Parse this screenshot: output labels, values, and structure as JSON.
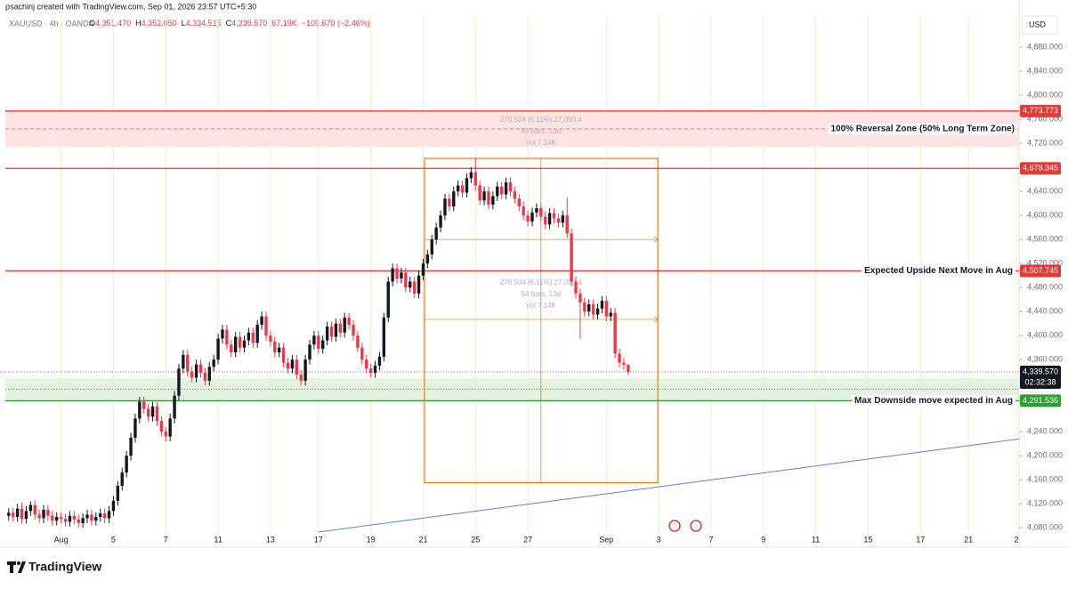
{
  "header": {
    "author": "psachinj created with TradingView.com, Sep 01, 2026 23:57 UTC+5:30",
    "symbol": "XAUUSD · 4h · OANDA",
    "legend": [
      {
        "key": "O",
        "value": "4,351.470"
      },
      {
        "key": "H",
        "value": "4,352.050"
      },
      {
        "key": "L",
        "value": "4,334.515"
      },
      {
        "key": "C",
        "value": "4,339.570"
      }
    ],
    "volume": "67.19K",
    "change": "−109.670 (−2.46%)"
  },
  "currency": "USD",
  "logo": "TradingView",
  "chart_data": {
    "type": "candlestick",
    "up_color": "#131722",
    "down_color": "#f23645",
    "xlim": [
      -2,
      231.6
    ],
    "ylim": [
      4070,
      4932
    ],
    "xticks": [
      {
        "value": 12,
        "label": "Aug"
      },
      {
        "value": 24,
        "label": "5"
      },
      {
        "value": 36,
        "label": "7"
      },
      {
        "value": 48,
        "label": "11"
      },
      {
        "value": 60,
        "label": "13"
      },
      {
        "value": 71,
        "label": "17"
      },
      {
        "value": 83,
        "label": "19"
      },
      {
        "value": 95,
        "label": "21"
      },
      {
        "value": 107,
        "label": "25"
      },
      {
        "value": 119,
        "label": "27"
      },
      {
        "value": 137,
        "label": "Sep"
      },
      {
        "value": 149,
        "label": "3"
      },
      {
        "value": 161,
        "label": "7"
      },
      {
        "value": 173,
        "label": "9"
      },
      {
        "value": 185,
        "label": "11"
      },
      {
        "value": 197,
        "label": "15"
      },
      {
        "value": 209,
        "label": "17"
      },
      {
        "value": 220,
        "label": "21"
      },
      {
        "value": 231,
        "label": "2"
      }
    ],
    "yticks": [
      {
        "value": 4880,
        "label": "4,880.000"
      },
      {
        "value": 4840,
        "label": "4,840.000"
      },
      {
        "value": 4800,
        "label": "4,800.000"
      },
      {
        "value": 4760,
        "label": "4,760.000"
      },
      {
        "value": 4720,
        "label": "4,720.000"
      },
      {
        "value": 4640,
        "label": "4,640.000"
      },
      {
        "value": 4600,
        "label": "4,600.000"
      },
      {
        "value": 4560,
        "label": "4,560.000"
      },
      {
        "value": 4520,
        "label": "4,520.000"
      },
      {
        "value": 4480,
        "label": "4,480.000"
      },
      {
        "value": 4440,
        "label": "4,440.000"
      },
      {
        "value": 4400,
        "label": "4,400.000"
      },
      {
        "value": 4360,
        "label": "4,360.000"
      },
      {
        "value": 4240,
        "label": "4,240.000"
      },
      {
        "value": 4200,
        "label": "4,200.000"
      },
      {
        "value": 4160,
        "label": "4,160.000"
      },
      {
        "value": 4120,
        "label": "4,120.000"
      },
      {
        "value": 4080,
        "label": "4,080.000"
      }
    ],
    "open": [
      4100,
      4105,
      4098,
      4112,
      4095,
      4108,
      4118,
      4102,
      4096,
      4110,
      4100,
      4092,
      4098,
      4095,
      4090,
      4100,
      4094,
      4088,
      4096,
      4102,
      4092,
      4098,
      4104,
      4096,
      4108,
      4125,
      4150,
      4172,
      4200,
      4230,
      4262,
      4290,
      4278,
      4265,
      4282,
      4258,
      4240,
      4232,
      4262,
      4300,
      4345,
      4368,
      4340,
      4330,
      4352,
      4338,
      4325,
      4348,
      4360,
      4395,
      4410,
      4385,
      4372,
      4398,
      4380,
      4392,
      4405,
      4388,
      4418,
      4432,
      4400,
      4390,
      4372,
      4380,
      4355,
      4345,
      4360,
      4335,
      4325,
      4360,
      4385,
      4400,
      4378,
      4392,
      4415,
      4398,
      4420,
      4405,
      4430,
      4418,
      4400,
      4380,
      4360,
      4345,
      4338,
      4350,
      4365,
      4430,
      4490,
      4512,
      4495,
      4505,
      4480,
      4490,
      4470,
      4500,
      4520,
      4535,
      4560,
      4580,
      4600,
      4628,
      4615,
      4640,
      4650,
      4638,
      4662,
      4672,
      4650,
      4625,
      4640,
      4618,
      4632,
      4648,
      4635,
      4655,
      4640,
      4628,
      4615,
      4600,
      4590,
      4605,
      4612,
      4598,
      4585,
      4604,
      4595,
      4588,
      4600,
      4570,
      4490,
      4470,
      4455,
      4440,
      4452,
      4435,
      4445,
      4458,
      4432,
      4438,
      4370,
      4355,
      4351.47
    ],
    "high": [
      4113,
      4113,
      4120,
      4122,
      4116,
      4124,
      4126,
      4110,
      4118,
      4118,
      4108,
      4106,
      4106,
      4103,
      4108,
      4108,
      4102,
      4104,
      4110,
      4110,
      4106,
      4112,
      4112,
      4116,
      4133,
      4158,
      4180,
      4208,
      4238,
      4270,
      4298,
      4298,
      4286,
      4290,
      4290,
      4266,
      4248,
      4270,
      4308,
      4353,
      4376,
      4376,
      4348,
      4360,
      4360,
      4346,
      4356,
      4368,
      4403,
      4418,
      4418,
      4393,
      4406,
      4406,
      4400,
      4413,
      4413,
      4426,
      4440,
      4440,
      4408,
      4398,
      4388,
      4388,
      4363,
      4368,
      4368,
      4343,
      4368,
      4393,
      4408,
      4408,
      4400,
      4423,
      4423,
      4428,
      4428,
      4438,
      4438,
      4426,
      4408,
      4388,
      4368,
      4353,
      4358,
      4373,
      4438,
      4498,
      4520,
      4520,
      4513,
      4513,
      4498,
      4498,
      4508,
      4528,
      4543,
      4568,
      4588,
      4608,
      4636,
      4636,
      4648,
      4658,
      4658,
      4670,
      4680,
      4695,
      4658,
      4648,
      4648,
      4640,
      4656,
      4656,
      4663,
      4663,
      4648,
      4636,
      4623,
      4608,
      4613,
      4620,
      4620,
      4606,
      4612,
      4612,
      4603,
      4608,
      4630,
      4578,
      4498,
      4478,
      4463,
      4460,
      4460,
      4453,
      4466,
      4466,
      4446,
      4446,
      4378,
      4363,
      4352.05
    ],
    "low": [
      4092,
      4090,
      4090,
      4087,
      4087,
      4100,
      4094,
      4088,
      4088,
      4092,
      4084,
      4084,
      4087,
      4082,
      4082,
      4086,
      4080,
      4080,
      4088,
      4084,
      4084,
      4090,
      4088,
      4088,
      4100,
      4117,
      4142,
      4164,
      4192,
      4222,
      4254,
      4270,
      4257,
      4257,
      4250,
      4232,
      4224,
      4224,
      4254,
      4292,
      4337,
      4332,
      4322,
      4322,
      4330,
      4317,
      4317,
      4340,
      4352,
      4387,
      4377,
      4364,
      4364,
      4372,
      4372,
      4384,
      4380,
      4380,
      4410,
      4392,
      4382,
      4364,
      4364,
      4347,
      4337,
      4337,
      4327,
      4317,
      4317,
      4352,
      4377,
      4370,
      4370,
      4384,
      4390,
      4390,
      4397,
      4397,
      4410,
      4392,
      4372,
      4352,
      4337,
      4330,
      4330,
      4342,
      4357,
      4422,
      4482,
      4487,
      4487,
      4472,
      4472,
      4462,
      4462,
      4492,
      4512,
      4527,
      4552,
      4572,
      4592,
      4607,
      4607,
      4632,
      4630,
      4630,
      4654,
      4642,
      4617,
      4617,
      4610,
      4610,
      4624,
      4627,
      4627,
      4632,
      4620,
      4607,
      4592,
      4582,
      4582,
      4597,
      4590,
      4577,
      4577,
      4587,
      4580,
      4580,
      4562,
      4482,
      4462,
      4395,
      4432,
      4432,
      4427,
      4427,
      4437,
      4424,
      4424,
      4362,
      4347,
      4343,
      4334.515
    ],
    "close": [
      4105,
      4098,
      4112,
      4095,
      4108,
      4118,
      4102,
      4096,
      4110,
      4100,
      4092,
      4098,
      4095,
      4090,
      4100,
      4094,
      4088,
      4096,
      4102,
      4092,
      4098,
      4104,
      4096,
      4108,
      4125,
      4150,
      4172,
      4200,
      4230,
      4262,
      4290,
      4278,
      4265,
      4282,
      4258,
      4240,
      4232,
      4262,
      4300,
      4345,
      4368,
      4340,
      4330,
      4352,
      4338,
      4325,
      4348,
      4360,
      4395,
      4410,
      4385,
      4372,
      4398,
      4380,
      4392,
      4405,
      4388,
      4418,
      4432,
      4400,
      4390,
      4372,
      4380,
      4355,
      4345,
      4360,
      4335,
      4325,
      4360,
      4385,
      4400,
      4378,
      4392,
      4415,
      4398,
      4420,
      4405,
      4430,
      4418,
      4400,
      4380,
      4360,
      4345,
      4338,
      4350,
      4365,
      4430,
      4490,
      4512,
      4495,
      4505,
      4480,
      4490,
      4470,
      4500,
      4520,
      4535,
      4560,
      4580,
      4600,
      4628,
      4615,
      4640,
      4650,
      4638,
      4662,
      4672,
      4650,
      4625,
      4640,
      4618,
      4632,
      4648,
      4635,
      4655,
      4640,
      4628,
      4615,
      4600,
      4590,
      4605,
      4612,
      4598,
      4585,
      4604,
      4595,
      4588,
      4600,
      4570,
      4490,
      4470,
      4455,
      4440,
      4452,
      4435,
      4445,
      4458,
      4432,
      4438,
      4370,
      4355,
      4351.47,
      4339.57
    ],
    "zones": [
      {
        "from": 4714,
        "to": 4773.773,
        "line": 4744,
        "color": "#fde3e3",
        "text": "100% Reversal Zone (50% Long Term Zone)"
      },
      {
        "from": 4291.536,
        "to": 4329,
        "line": 4311,
        "color": "#e3f3df"
      }
    ],
    "levels": [
      {
        "value": 4773.773,
        "label": "4,773.773",
        "color": "#e53935"
      },
      {
        "value": 4678.345,
        "label": "4,678.345",
        "color": "#e53935"
      },
      {
        "value": 4507.745,
        "label": "4,507.745",
        "color": "#e53935",
        "text": "Expected Upside Next Move in Aug"
      },
      {
        "value": 4291.536,
        "label": "4,291.536",
        "color": "#2e9e34",
        "text": "Max Downside move expected in Aug"
      }
    ],
    "last_price": {
      "value": 4339.57,
      "label": "4,339.570",
      "countdown": "02:32:38"
    },
    "measure": {
      "x": [
        95.3,
        148.8
      ],
      "top": 4695,
      "bottom": 4155,
      "lines": [
        4560,
        4427
      ],
      "mid_x": 122,
      "color": "#f57c00",
      "texts": [
        "270.504 (6.11%) 27,050.4",
        "54 bars, 13d",
        "Vol 7.14K"
      ]
    },
    "trendline": {
      "x": [
        71,
        231.6
      ],
      "y": [
        4073,
        4228
      ],
      "color": "#5b7fe0"
    }
  }
}
